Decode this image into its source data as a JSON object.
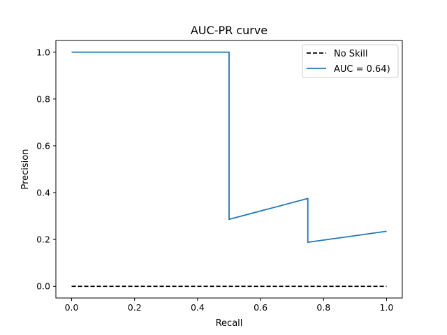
{
  "chart_data": {
    "type": "line",
    "title": "AUC-PR curve",
    "xlabel": "Recall",
    "ylabel": "Precision",
    "xlim": [
      -0.05,
      1.05
    ],
    "ylim": [
      -0.05,
      1.05
    ],
    "xticks": [
      0.0,
      0.2,
      0.4,
      0.6,
      0.8,
      1.0
    ],
    "xtick_labels": [
      "0.0",
      "0.2",
      "0.4",
      "0.6",
      "0.8",
      "1.0"
    ],
    "yticks": [
      0.0,
      0.2,
      0.4,
      0.6,
      0.8,
      1.0
    ],
    "ytick_labels": [
      "0.0",
      "0.2",
      "0.4",
      "0.6",
      "0.8",
      "1.0"
    ],
    "grid": false,
    "legend_position": "top-right",
    "series": [
      {
        "name": "No Skill",
        "color": "#000000",
        "dashed": true,
        "x": [
          0.0,
          1.0
        ],
        "y": [
          0.0,
          0.0
        ]
      },
      {
        "name": "AUC = 0.64)",
        "color": "#1f77b4",
        "dashed": false,
        "x": [
          0.0,
          0.5,
          0.5,
          0.75,
          0.75,
          1.0
        ],
        "y": [
          1.0,
          1.0,
          0.286,
          0.375,
          0.188,
          0.235
        ]
      }
    ]
  }
}
